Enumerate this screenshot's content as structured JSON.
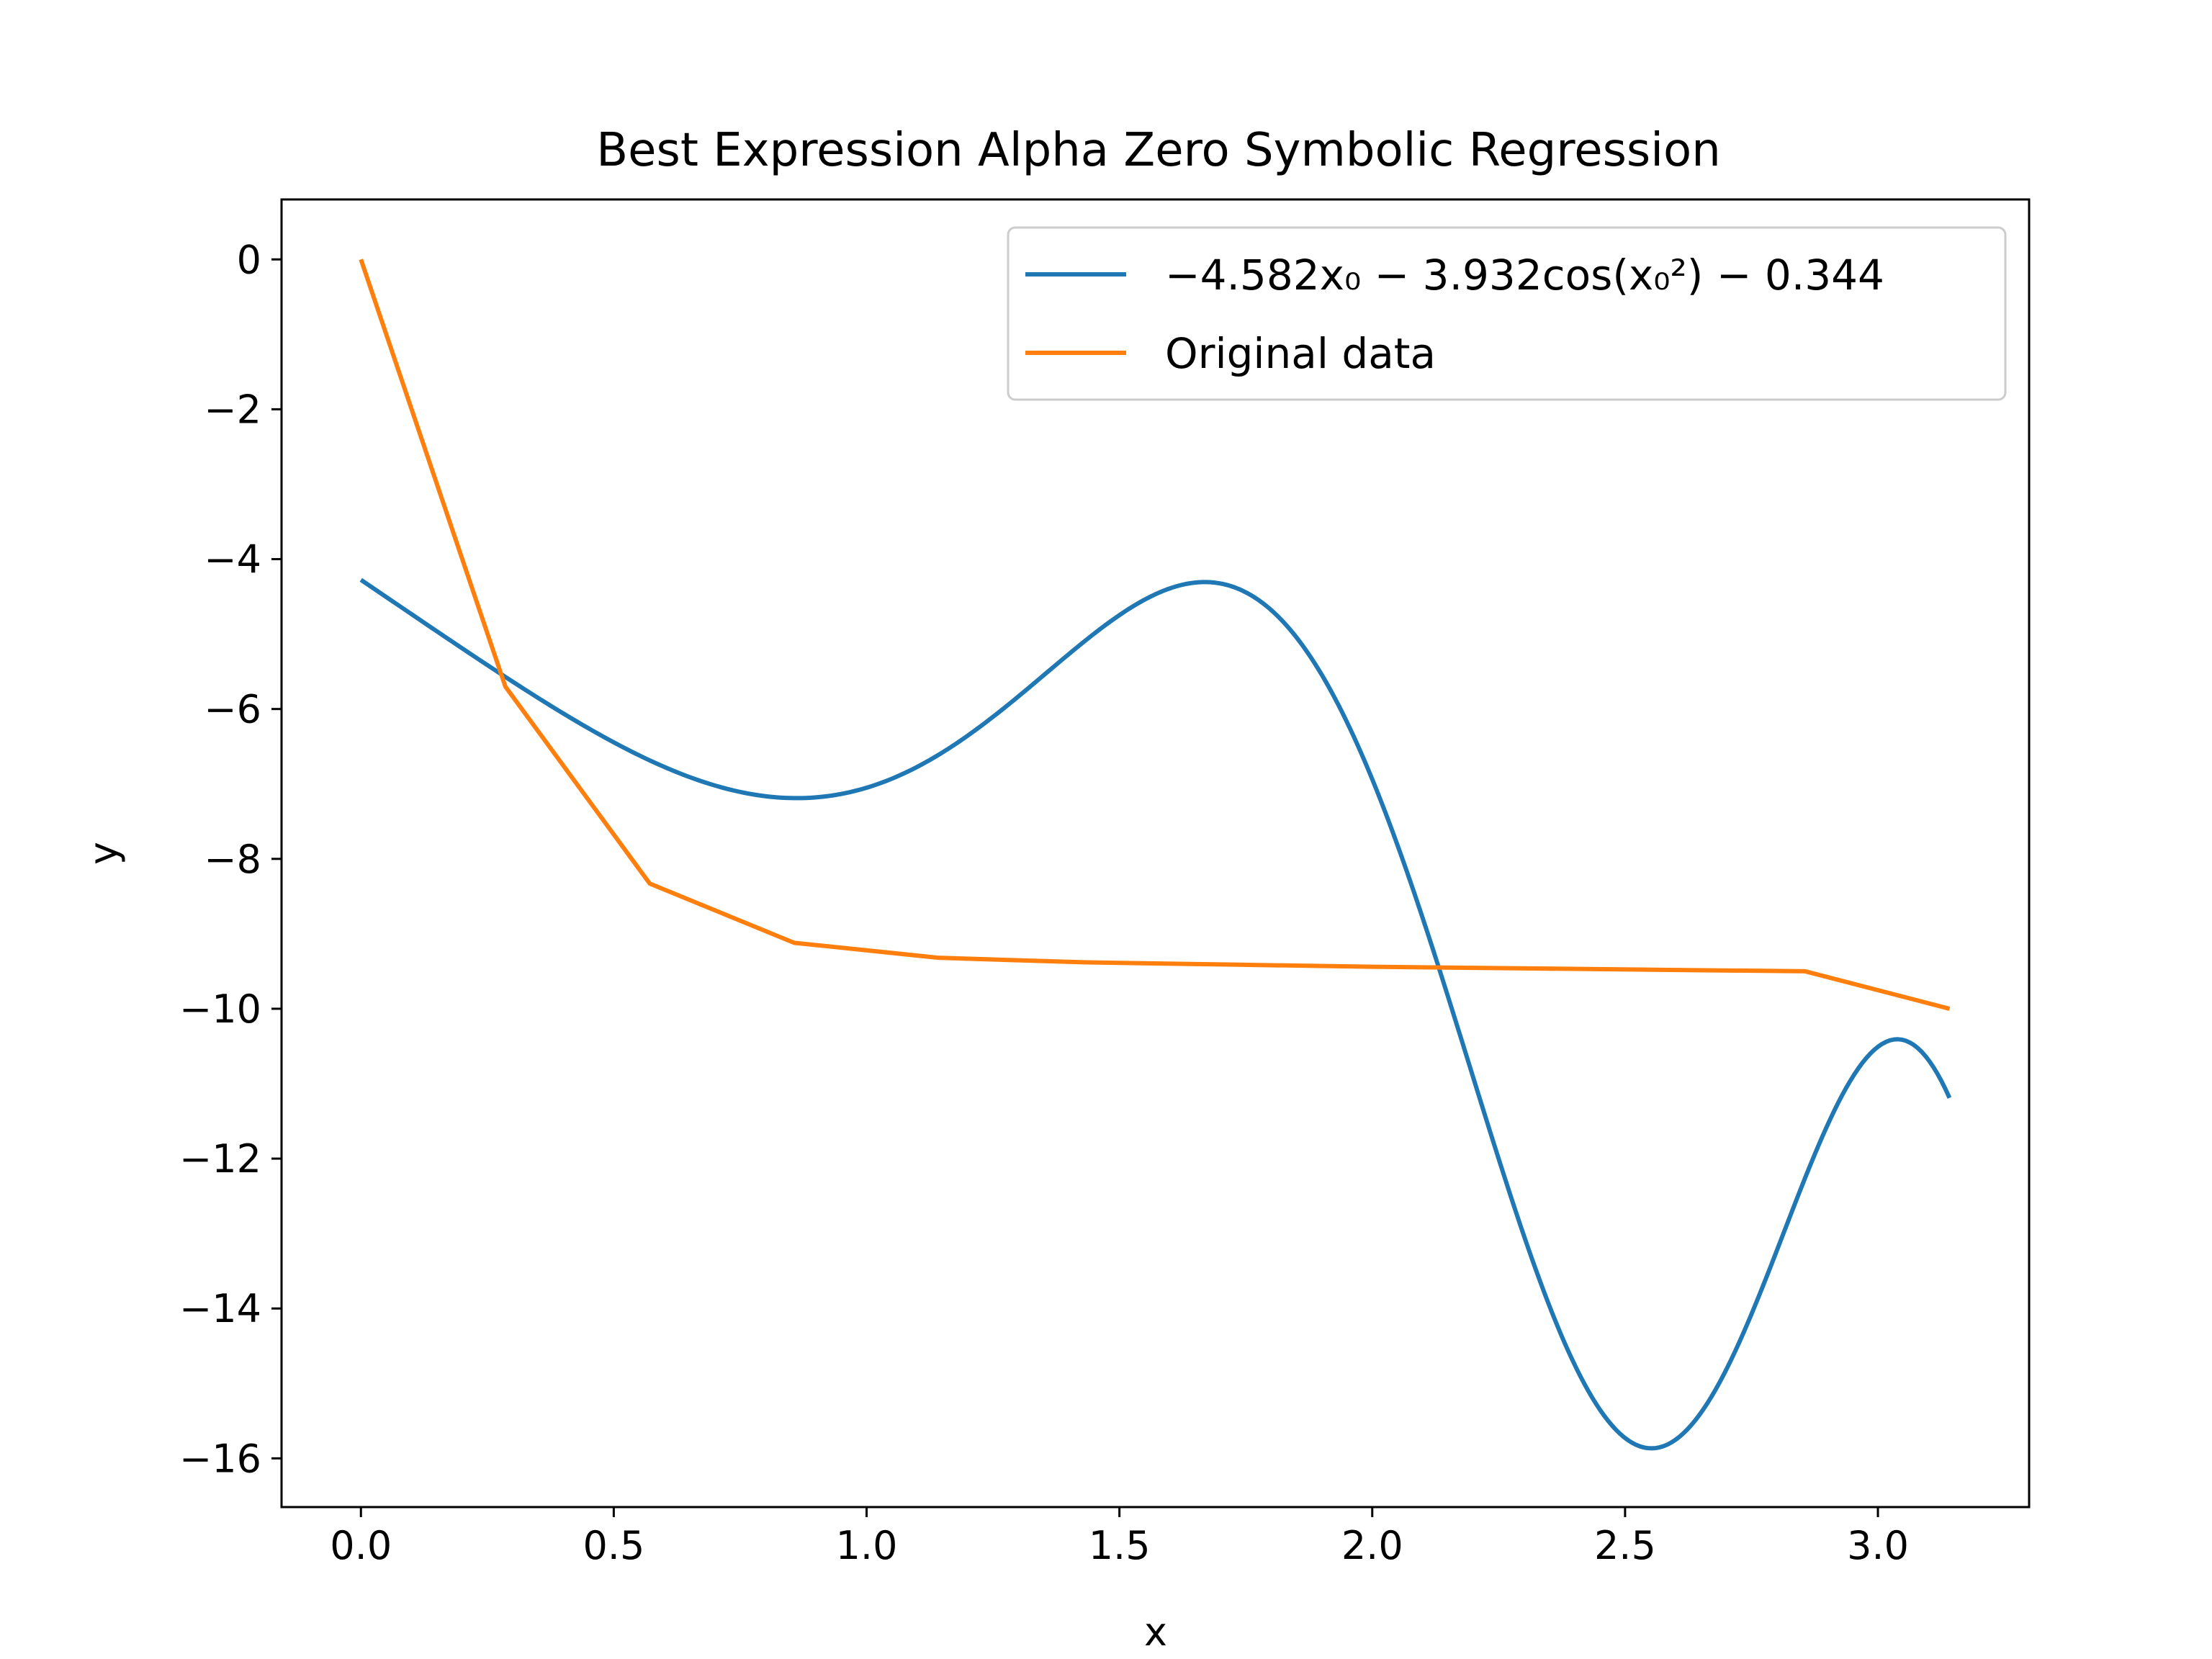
{
  "chart_data": {
    "type": "line",
    "title": "Best Expression Alpha Zero Symbolic Regression",
    "xlabel": "x",
    "ylabel": "y",
    "xlim": [
      -0.157,
      3.299
    ],
    "ylim": [
      -16.65,
      0.8
    ],
    "xticks": [
      0.0,
      0.5,
      1.0,
      1.5,
      2.0,
      2.5,
      3.0
    ],
    "xtick_labels": [
      "0.0",
      "0.5",
      "1.0",
      "1.5",
      "2.0",
      "2.5",
      "3.0"
    ],
    "yticks": [
      0,
      -2,
      -4,
      -6,
      -8,
      -10,
      -12,
      -14,
      -16
    ],
    "ytick_labels": [
      "0",
      "−2",
      "−4",
      "−6",
      "−8",
      "−10",
      "−12",
      "−14",
      "−16"
    ],
    "grid": false,
    "legend_position": "upper right",
    "legend": [
      "−4.582x₀ − 3.932cos(x₀²) − 0.344",
      "Original data"
    ],
    "series": [
      {
        "name": "−4.582x₀ − 3.932cos(x₀²) − 0.344",
        "color": "#1f77b4",
        "expression": {
          "a": -4.582,
          "b": -3.932,
          "c": -0.344
        },
        "x_range": [
          0,
          3.1416
        ]
      },
      {
        "name": "Original data",
        "color": "#ff7f0e",
        "x": [
          0.0,
          0.2856,
          0.5712,
          0.8568,
          1.1424,
          1.428,
          1.7136,
          1.9992,
          2.2848,
          2.5704,
          2.856,
          3.1416
        ],
        "y": [
          0.0,
          -5.7,
          -8.33,
          -9.12,
          -9.32,
          -9.38,
          -9.41,
          -9.44,
          -9.46,
          -9.48,
          -9.5,
          -10.0
        ]
      }
    ]
  }
}
